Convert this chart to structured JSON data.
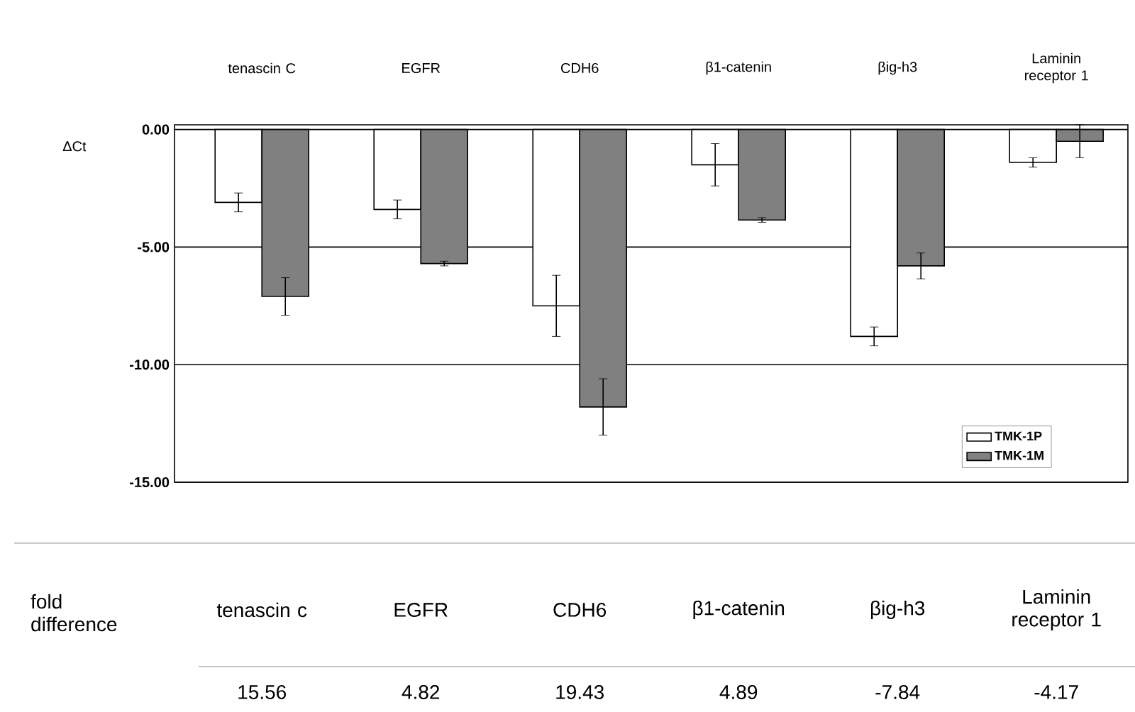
{
  "chart_data": {
    "type": "bar",
    "ylabel": "ΔCt",
    "categories": [
      "tenascin C",
      "EGFR",
      "CDH6",
      "β1-catenin",
      "βig-h3",
      "Laminin receptor 1"
    ],
    "series": [
      {
        "name": "TMK-1P",
        "color": "#ffffff",
        "values": [
          -3.1,
          -3.4,
          -7.5,
          -1.5,
          -8.8,
          -1.4
        ],
        "errors": [
          0.4,
          0.4,
          1.3,
          0.9,
          0.4,
          0.2
        ]
      },
      {
        "name": "TMK-1M",
        "color": "#808080",
        "values": [
          -7.1,
          -5.7,
          -11.8,
          -3.85,
          -5.8,
          -0.5
        ],
        "errors": [
          0.8,
          0.1,
          1.2,
          0.1,
          0.55,
          0.7
        ]
      }
    ],
    "ylim": [
      -15,
      0.2
    ],
    "yticks": [
      {
        "value": 0,
        "label": "0.00"
      },
      {
        "value": -5,
        "label": "-5.00"
      },
      {
        "value": -10,
        "label": "-10.00"
      },
      {
        "value": -15,
        "label": "-15.00"
      }
    ],
    "grid": "y",
    "legend": "bottom right",
    "annotations": [
      "fold difference",
      "tenascin c",
      "EGFR",
      "CDH6",
      "β1-catenin",
      "βig-h3",
      "Laminin receptor 1",
      "15.56",
      "4.82",
      "19.43",
      "4.89",
      "-7.84",
      "-4.17"
    ]
  }
}
